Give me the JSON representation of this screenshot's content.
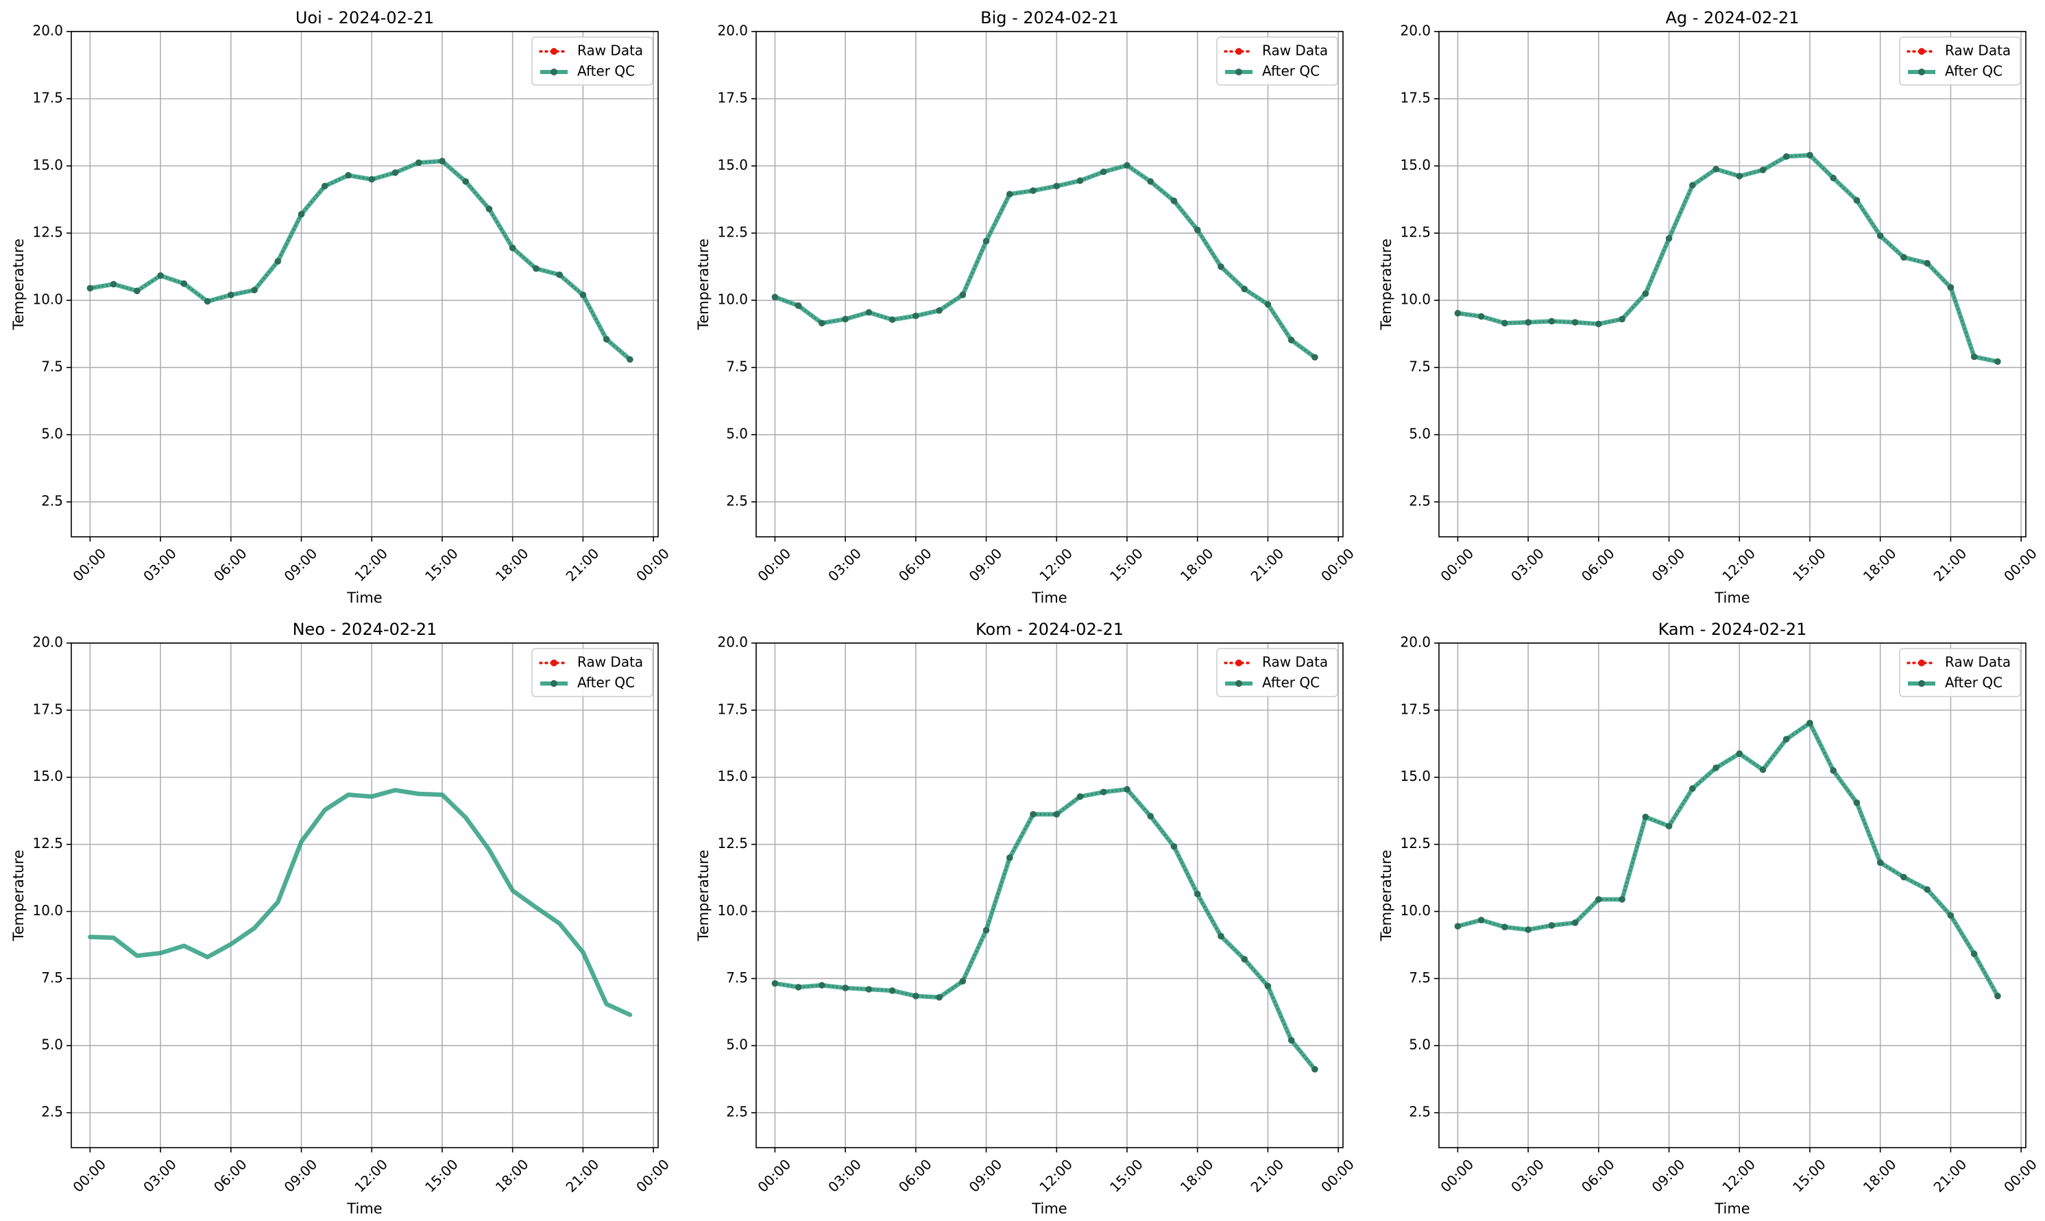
{
  "figure": {
    "colors": {
      "raw": "#e8160c",
      "qc": "#2e9d80",
      "qc_marker": "#2c6e57",
      "grid": "#b0b0b0",
      "axis": "#000000"
    },
    "legend_labels": {
      "raw": "Raw Data",
      "qc": "After QC"
    }
  },
  "chart_data": [
    {
      "type": "line",
      "title": "Uoi - 2024-02-21",
      "xlabel": "Time",
      "ylabel": "Temperature",
      "xlim": [
        -0.8,
        24.2
      ],
      "ylim": [
        1.2,
        20.0
      ],
      "x_tick_values": [
        0,
        3,
        6,
        9,
        12,
        15,
        18,
        21,
        24
      ],
      "x_ticks": [
        "00:00",
        "03:00",
        "06:00",
        "09:00",
        "12:00",
        "15:00",
        "18:00",
        "21:00",
        "00:00"
      ],
      "y_tick_values": [
        2.5,
        5.0,
        7.5,
        10.0,
        12.5,
        15.0,
        17.5,
        20.0
      ],
      "y_ticks": [
        "2.5",
        "5.0",
        "7.5",
        "10.0",
        "12.5",
        "15.0",
        "17.5",
        "20.0"
      ],
      "grid": true,
      "legend": "top-right",
      "raw_visible": true,
      "series": [
        {
          "name": "Raw Data",
          "values": [
            10.45,
            10.6,
            10.35,
            10.92,
            10.62,
            9.96,
            10.2,
            10.38,
            11.45,
            13.2,
            14.25,
            14.65,
            14.5,
            14.75,
            15.12,
            15.18,
            14.42,
            13.4,
            11.95,
            11.18,
            10.95,
            10.2,
            8.55,
            7.8
          ]
        },
        {
          "name": "After QC",
          "values": [
            10.45,
            10.6,
            10.35,
            10.92,
            10.62,
            9.96,
            10.2,
            10.38,
            11.45,
            13.2,
            14.25,
            14.65,
            14.5,
            14.75,
            15.12,
            15.18,
            14.42,
            13.4,
            11.95,
            11.18,
            10.95,
            10.2,
            8.55,
            7.8
          ]
        }
      ]
    },
    {
      "type": "line",
      "title": "Big - 2024-02-21",
      "xlabel": "Time",
      "ylabel": "Temperature",
      "xlim": [
        -0.8,
        24.2
      ],
      "ylim": [
        1.2,
        20.0
      ],
      "x_tick_values": [
        0,
        3,
        6,
        9,
        12,
        15,
        18,
        21,
        24
      ],
      "x_ticks": [
        "00:00",
        "03:00",
        "06:00",
        "09:00",
        "12:00",
        "15:00",
        "18:00",
        "21:00",
        "00:00"
      ],
      "y_tick_values": [
        2.5,
        5.0,
        7.5,
        10.0,
        12.5,
        15.0,
        17.5,
        20.0
      ],
      "y_ticks": [
        "2.5",
        "5.0",
        "7.5",
        "10.0",
        "12.5",
        "15.0",
        "17.5",
        "20.0"
      ],
      "grid": true,
      "legend": "top-right",
      "raw_visible": true,
      "series": [
        {
          "name": "Raw Data",
          "values": [
            10.12,
            9.8,
            9.15,
            9.3,
            9.55,
            9.28,
            9.42,
            9.62,
            10.2,
            12.2,
            13.95,
            14.08,
            14.25,
            14.45,
            14.78,
            15.02,
            14.42,
            13.7,
            12.62,
            11.25,
            10.42,
            9.85,
            8.52,
            7.88
          ]
        },
        {
          "name": "After QC",
          "values": [
            10.12,
            9.8,
            9.15,
            9.3,
            9.55,
            9.28,
            9.42,
            9.62,
            10.2,
            12.2,
            13.95,
            14.08,
            14.25,
            14.45,
            14.78,
            15.02,
            14.42,
            13.7,
            12.62,
            11.25,
            10.42,
            9.85,
            8.52,
            7.88
          ]
        }
      ]
    },
    {
      "type": "line",
      "title": "Ag - 2024-02-21",
      "xlabel": "Time",
      "ylabel": "Temperature",
      "xlim": [
        -0.8,
        24.2
      ],
      "ylim": [
        1.2,
        20.0
      ],
      "x_tick_values": [
        0,
        3,
        6,
        9,
        12,
        15,
        18,
        21,
        24
      ],
      "x_ticks": [
        "00:00",
        "03:00",
        "06:00",
        "09:00",
        "12:00",
        "15:00",
        "18:00",
        "21:00",
        "00:00"
      ],
      "y_tick_values": [
        2.5,
        5.0,
        7.5,
        10.0,
        12.5,
        15.0,
        17.5,
        20.0
      ],
      "y_ticks": [
        "2.5",
        "5.0",
        "7.5",
        "10.0",
        "12.5",
        "15.0",
        "17.5",
        "20.0"
      ],
      "grid": true,
      "legend": "top-right",
      "raw_visible": true,
      "series": [
        {
          "name": "Raw Data",
          "values": [
            9.52,
            9.4,
            9.15,
            9.18,
            9.22,
            9.18,
            9.12,
            9.3,
            10.25,
            12.3,
            14.28,
            14.88,
            14.62,
            14.85,
            15.35,
            15.4,
            14.55,
            13.72,
            12.4,
            11.6,
            11.38,
            10.48,
            7.9,
            7.72
          ]
        },
        {
          "name": "After QC",
          "values": [
            9.52,
            9.4,
            9.15,
            9.18,
            9.22,
            9.18,
            9.12,
            9.3,
            10.25,
            12.3,
            14.28,
            14.88,
            14.62,
            14.85,
            15.35,
            15.4,
            14.55,
            13.72,
            12.4,
            11.6,
            11.38,
            10.48,
            7.9,
            7.72
          ]
        }
      ]
    },
    {
      "type": "line",
      "title": "Neo - 2024-02-21",
      "xlabel": "Time",
      "ylabel": "Temperature",
      "xlim": [
        -0.8,
        24.2
      ],
      "ylim": [
        1.2,
        20.0
      ],
      "x_tick_values": [
        0,
        3,
        6,
        9,
        12,
        15,
        18,
        21,
        24
      ],
      "x_ticks": [
        "00:00",
        "03:00",
        "06:00",
        "09:00",
        "12:00",
        "15:00",
        "18:00",
        "21:00",
        "00:00"
      ],
      "y_tick_values": [
        2.5,
        5.0,
        7.5,
        10.0,
        12.5,
        15.0,
        17.5,
        20.0
      ],
      "y_ticks": [
        "2.5",
        "5.0",
        "7.5",
        "10.0",
        "12.5",
        "15.0",
        "17.5",
        "20.0"
      ],
      "grid": true,
      "legend": "top-right",
      "raw_visible": false,
      "series": [
        {
          "name": "Raw Data",
          "values": [
            9.05,
            9.02,
            8.35,
            8.45,
            8.72,
            8.3,
            8.78,
            9.38,
            10.35,
            12.6,
            13.78,
            14.35,
            14.28,
            14.52,
            14.38,
            14.35,
            13.5,
            12.3,
            10.78,
            10.15,
            9.55,
            8.48,
            6.55,
            6.15
          ]
        },
        {
          "name": "After QC",
          "values": [
            9.05,
            9.02,
            8.35,
            8.45,
            8.72,
            8.3,
            8.78,
            9.38,
            10.35,
            12.6,
            13.78,
            14.35,
            14.28,
            14.52,
            14.38,
            14.35,
            13.5,
            12.3,
            10.78,
            10.15,
            9.55,
            8.48,
            6.55,
            6.15
          ]
        }
      ]
    },
    {
      "type": "line",
      "title": "Kom - 2024-02-21",
      "xlabel": "Time",
      "ylabel": "Temperature",
      "xlim": [
        -0.8,
        24.2
      ],
      "ylim": [
        1.2,
        20.0
      ],
      "x_tick_values": [
        0,
        3,
        6,
        9,
        12,
        15,
        18,
        21,
        24
      ],
      "x_ticks": [
        "00:00",
        "03:00",
        "06:00",
        "09:00",
        "12:00",
        "15:00",
        "18:00",
        "21:00",
        "00:00"
      ],
      "y_tick_values": [
        2.5,
        5.0,
        7.5,
        10.0,
        12.5,
        15.0,
        17.5,
        20.0
      ],
      "y_ticks": [
        "2.5",
        "5.0",
        "7.5",
        "10.0",
        "12.5",
        "15.0",
        "17.5",
        "20.0"
      ],
      "grid": true,
      "legend": "top-right",
      "raw_visible": true,
      "series": [
        {
          "name": "Raw Data",
          "values": [
            7.32,
            7.18,
            7.25,
            7.15,
            7.1,
            7.05,
            6.85,
            6.8,
            7.4,
            9.3,
            12.0,
            13.62,
            13.62,
            14.28,
            14.45,
            14.55,
            13.55,
            12.42,
            10.65,
            9.08,
            8.22,
            7.22,
            5.2,
            4.12
          ]
        },
        {
          "name": "After QC",
          "values": [
            7.32,
            7.18,
            7.25,
            7.15,
            7.1,
            7.05,
            6.85,
            6.8,
            7.4,
            9.3,
            12.0,
            13.62,
            13.62,
            14.28,
            14.45,
            14.55,
            13.55,
            12.42,
            10.65,
            9.08,
            8.22,
            7.22,
            5.2,
            4.12
          ]
        }
      ]
    },
    {
      "type": "line",
      "title": "Kam - 2024-02-21",
      "xlabel": "Time",
      "ylabel": "Temperature",
      "xlim": [
        -0.8,
        24.2
      ],
      "ylim": [
        1.2,
        20.0
      ],
      "x_tick_values": [
        0,
        3,
        6,
        9,
        12,
        15,
        18,
        21,
        24
      ],
      "x_ticks": [
        "00:00",
        "03:00",
        "06:00",
        "09:00",
        "12:00",
        "15:00",
        "18:00",
        "21:00",
        "00:00"
      ],
      "y_tick_values": [
        2.5,
        5.0,
        7.5,
        10.0,
        12.5,
        15.0,
        17.5,
        20.0
      ],
      "y_ticks": [
        "2.5",
        "5.0",
        "7.5",
        "10.0",
        "12.5",
        "15.0",
        "17.5",
        "20.0"
      ],
      "grid": true,
      "legend": "top-right",
      "raw_visible": true,
      "series": [
        {
          "name": "Raw Data",
          "values": [
            9.45,
            9.68,
            9.42,
            9.32,
            9.48,
            9.58,
            10.45,
            10.45,
            13.52,
            13.18,
            14.58,
            15.35,
            15.88,
            15.28,
            16.42,
            17.02,
            15.25,
            14.05,
            11.82,
            11.28,
            10.82,
            9.85,
            8.42,
            6.85
          ]
        },
        {
          "name": "After QC",
          "values": [
            9.45,
            9.68,
            9.42,
            9.32,
            9.48,
            9.58,
            10.45,
            10.45,
            13.52,
            13.18,
            14.58,
            15.35,
            15.88,
            15.28,
            16.42,
            17.02,
            15.25,
            14.05,
            11.82,
            11.28,
            10.82,
            9.85,
            8.42,
            6.85
          ]
        }
      ]
    }
  ]
}
